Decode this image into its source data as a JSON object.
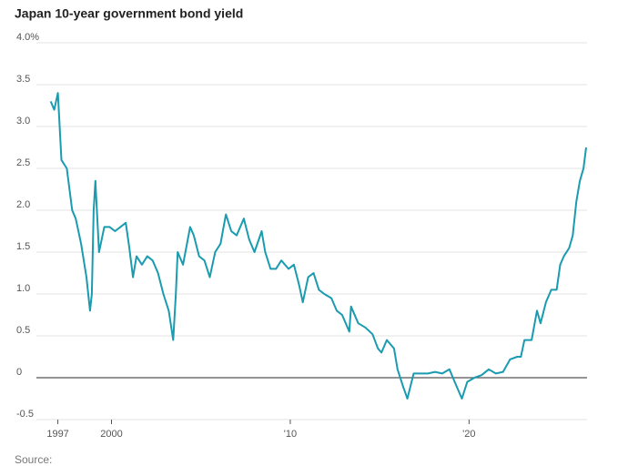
{
  "chart_data": {
    "type": "line",
    "title": "Japan 10-year government bond yield",
    "source": "Source:",
    "x": [
      1996.6,
      1996.8,
      1997.0,
      1997.2,
      1997.5,
      1997.8,
      1998.0,
      1998.3,
      1998.6,
      1998.8,
      1998.9,
      1999.0,
      1999.1,
      1999.3,
      1999.6,
      1999.9,
      2000.2,
      2000.5,
      2000.8,
      2001.0,
      2001.2,
      2001.4,
      2001.7,
      2002.0,
      2002.3,
      2002.6,
      2002.9,
      2003.2,
      2003.45,
      2003.6,
      2003.7,
      2004.0,
      2004.4,
      2004.6,
      2004.9,
      2005.2,
      2005.5,
      2005.8,
      2006.1,
      2006.4,
      2006.7,
      2007.0,
      2007.4,
      2007.7,
      2008.0,
      2008.4,
      2008.6,
      2008.9,
      2009.2,
      2009.5,
      2009.9,
      2010.2,
      2010.5,
      2010.7,
      2011.0,
      2011.3,
      2011.6,
      2011.9,
      2012.3,
      2012.6,
      2012.9,
      2013.3,
      2013.4,
      2013.8,
      2014.2,
      2014.6,
      2014.9,
      2015.1,
      2015.4,
      2015.8,
      2016.0,
      2016.3,
      2016.55,
      2016.9,
      2017.3,
      2017.7,
      2018.1,
      2018.5,
      2018.9,
      2019.2,
      2019.6,
      2019.9,
      2020.3,
      2020.7,
      2021.1,
      2021.5,
      2021.9,
      2022.3,
      2022.7,
      2022.9,
      2023.1,
      2023.5,
      2023.8,
      2024.0,
      2024.3,
      2024.6,
      2024.9,
      2025.1,
      2025.3,
      2025.6,
      2025.8,
      2026.0,
      2026.2,
      2026.4,
      2026.55
    ],
    "series": [
      {
        "color": "#1a9bb0",
        "values": [
          3.3,
          3.2,
          3.4,
          2.6,
          2.5,
          2.0,
          1.9,
          1.6,
          1.2,
          0.8,
          1.0,
          2.0,
          2.35,
          1.5,
          1.8,
          1.8,
          1.75,
          1.8,
          1.85,
          1.55,
          1.2,
          1.45,
          1.35,
          1.45,
          1.4,
          1.25,
          1.0,
          0.8,
          0.45,
          1.0,
          1.5,
          1.35,
          1.8,
          1.7,
          1.45,
          1.4,
          1.2,
          1.5,
          1.6,
          1.95,
          1.75,
          1.7,
          1.9,
          1.65,
          1.5,
          1.75,
          1.5,
          1.3,
          1.3,
          1.4,
          1.3,
          1.35,
          1.1,
          0.9,
          1.2,
          1.25,
          1.05,
          1.0,
          0.95,
          0.8,
          0.75,
          0.55,
          0.85,
          0.65,
          0.6,
          0.52,
          0.35,
          0.3,
          0.45,
          0.35,
          0.1,
          -0.1,
          -0.25,
          0.05,
          0.05,
          0.05,
          0.07,
          0.05,
          0.1,
          -0.05,
          -0.25,
          -0.05,
          0.0,
          0.03,
          0.1,
          0.05,
          0.07,
          0.22,
          0.25,
          0.25,
          0.45,
          0.45,
          0.8,
          0.65,
          0.9,
          1.05,
          1.05,
          1.35,
          1.45,
          1.55,
          1.7,
          2.1,
          2.35,
          2.5,
          2.75
        ]
      }
    ],
    "xlim": [
      1995.8,
      2026.6
    ],
    "xticks": [
      1997,
      2000,
      {
        "value": 2010,
        "label": "'10"
      },
      {
        "value": 2020,
        "label": "'20"
      }
    ],
    "ylim": [
      -0.5,
      4.0
    ],
    "yticks": [
      -0.5,
      0,
      0.5,
      {
        "value": 1,
        "label": "1.0"
      },
      1.5,
      {
        "value": 2,
        "label": "2.0"
      },
      2.5,
      {
        "value": 3,
        "label": "3.0"
      },
      3.5,
      {
        "value": 4,
        "label": "4.0%"
      }
    ],
    "grid": true
  }
}
